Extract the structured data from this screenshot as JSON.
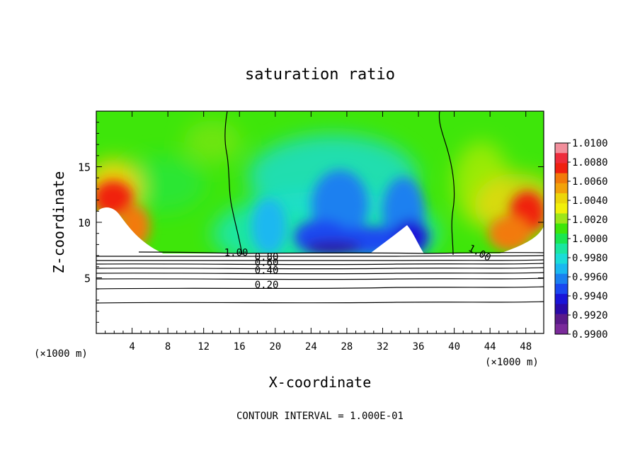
{
  "chart_data": {
    "type": "heatmap",
    "title": "saturation ratio",
    "xlabel": "X-coordinate",
    "ylabel": "Z-coordinate",
    "x_unit_left": "(×1000 m)",
    "x_unit_right": "(×1000 m)",
    "footer": "CONTOUR INTERVAL = 1.000E-01",
    "xlim": [
      0,
      50
    ],
    "ylim": [
      0,
      20
    ],
    "x_ticks": [
      "4",
      "8",
      "12",
      "16",
      "20",
      "24",
      "28",
      "32",
      "36",
      "40",
      "44",
      "48"
    ],
    "x_tick_values": [
      4,
      8,
      12,
      16,
      20,
      24,
      28,
      32,
      36,
      40,
      44,
      48
    ],
    "y_ticks": [
      "5",
      "10",
      "15"
    ],
    "y_tick_values": [
      5,
      10,
      15
    ],
    "colorbar": {
      "labels": [
        "1.0100",
        "1.0080",
        "1.0060",
        "1.0040",
        "1.0020",
        "1.0000",
        "0.9980",
        "0.9960",
        "0.9940",
        "0.9920",
        "0.9900"
      ],
      "values": [
        1.01,
        1.008,
        1.006,
        1.004,
        1.002,
        1.0,
        0.998,
        0.996,
        0.994,
        0.992,
        0.99
      ],
      "colors": [
        "#f28f9c",
        "#ee2c3c",
        "#f02010",
        "#f27a0a",
        "#f2a20a",
        "#ecd60a",
        "#f1f00a",
        "#9ee61a",
        "#3ee60a",
        "#1ae650",
        "#1ae6a0",
        "#1adcd8",
        "#1ab8f0",
        "#1a80f0",
        "#1a48f0",
        "#1a14d8",
        "#2a0aa8",
        "#5a1a8a",
        "#7a2a9a"
      ]
    },
    "contour_labels": [
      {
        "text": "1.00",
        "x": 14.3,
        "z": 7.3
      },
      {
        "text": "1.00",
        "x": 41.5,
        "z": 7.8
      },
      {
        "text": "0.80",
        "x": 17.7,
        "z": 6.9
      },
      {
        "text": "0.60",
        "x": 17.7,
        "z": 6.4
      },
      {
        "text": "0.40",
        "x": 17.7,
        "z": 5.7
      },
      {
        "text": "0.20",
        "x": 17.7,
        "z": 4.4
      }
    ]
  }
}
